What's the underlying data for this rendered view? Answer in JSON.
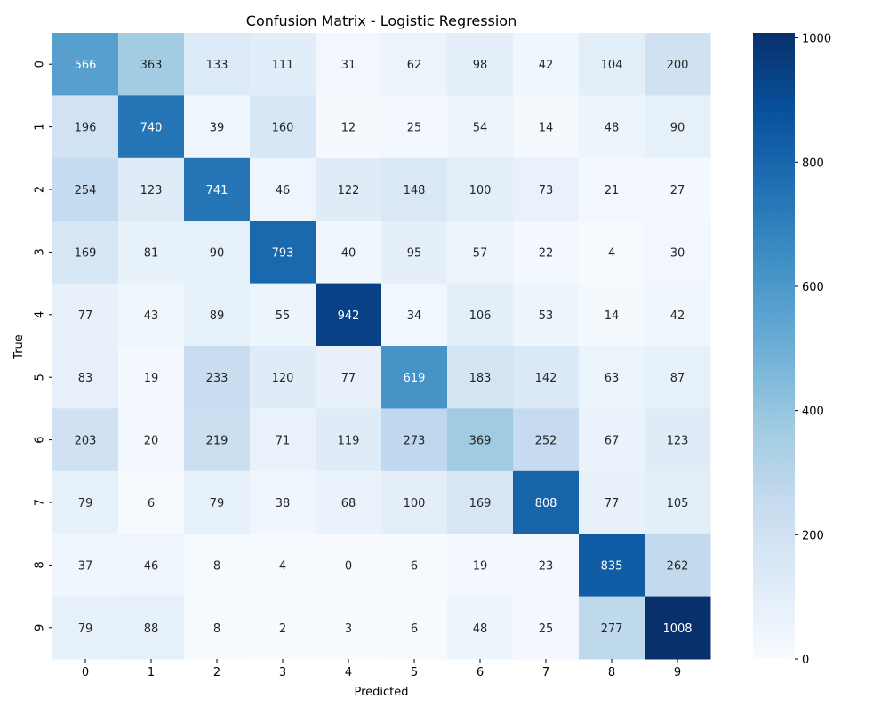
{
  "chart_data": {
    "type": "heatmap",
    "title": "Confusion Matrix - Logistic Regression",
    "xlabel": "Predicted",
    "ylabel": "True",
    "x_categories": [
      "0",
      "1",
      "2",
      "3",
      "4",
      "5",
      "6",
      "7",
      "8",
      "9"
    ],
    "y_categories": [
      "0",
      "1",
      "2",
      "3",
      "4",
      "5",
      "6",
      "7",
      "8",
      "9"
    ],
    "values": [
      [
        566,
        363,
        133,
        111,
        31,
        62,
        98,
        42,
        104,
        200
      ],
      [
        196,
        740,
        39,
        160,
        12,
        25,
        54,
        14,
        48,
        90
      ],
      [
        254,
        123,
        741,
        46,
        122,
        148,
        100,
        73,
        21,
        27
      ],
      [
        169,
        81,
        90,
        793,
        40,
        95,
        57,
        22,
        4,
        30
      ],
      [
        77,
        43,
        89,
        55,
        942,
        34,
        106,
        53,
        14,
        42
      ],
      [
        83,
        19,
        233,
        120,
        77,
        619,
        183,
        142,
        63,
        87
      ],
      [
        203,
        20,
        219,
        71,
        119,
        273,
        369,
        252,
        67,
        123
      ],
      [
        79,
        6,
        79,
        38,
        68,
        100,
        169,
        808,
        77,
        105
      ],
      [
        37,
        46,
        8,
        4,
        0,
        6,
        19,
        23,
        835,
        262
      ],
      [
        79,
        88,
        8,
        2,
        3,
        6,
        48,
        25,
        277,
        1008
      ]
    ],
    "colormap": "Blues",
    "color_range": [
      0,
      1008
    ],
    "colorbar_ticks": [
      0,
      200,
      400,
      600,
      800,
      1000
    ],
    "colorbar_tick_labels": [
      "0",
      "200",
      "400",
      "600",
      "800",
      "1000"
    ],
    "annotations": true,
    "grid": false,
    "legend": "colorbar-right"
  }
}
